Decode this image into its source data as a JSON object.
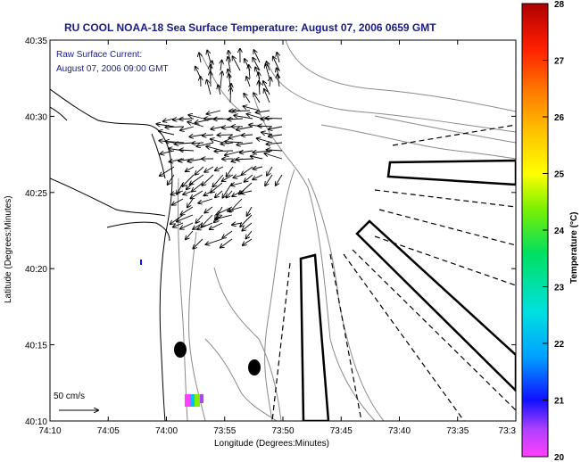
{
  "title": "RU COOL  NOAA-18  Sea Surface Temperature:  August 07, 2006 0659 GMT",
  "overlay": {
    "line1": "Raw Surface Current:",
    "line2": "August 07, 2006 09:00 GMT"
  },
  "scale": {
    "label": "50 cm/s"
  },
  "axes": {
    "xlabel": "Longitude (Degrees:Minutes)",
    "ylabel": "Latitude (Degrees:Minutes)",
    "xticks": [
      "74:10",
      "74:05",
      "74:00",
      "73:55",
      "73:50",
      "73:45",
      "73:40",
      "73:35",
      "73:3"
    ],
    "yticks": [
      "40:35",
      "40:30",
      "40:25",
      "40:20",
      "40:15",
      "40:10"
    ]
  },
  "colorbar": {
    "label": "Temperature (°C)",
    "ticks": [
      "28",
      "27",
      "26",
      "25",
      "24",
      "23",
      "22",
      "21",
      "20"
    ],
    "min": 20,
    "max": 28
  },
  "colors": {
    "title": "#1a1a8c",
    "land": "#ffffff",
    "coast": "#000000",
    "contour": "#808080"
  }
}
